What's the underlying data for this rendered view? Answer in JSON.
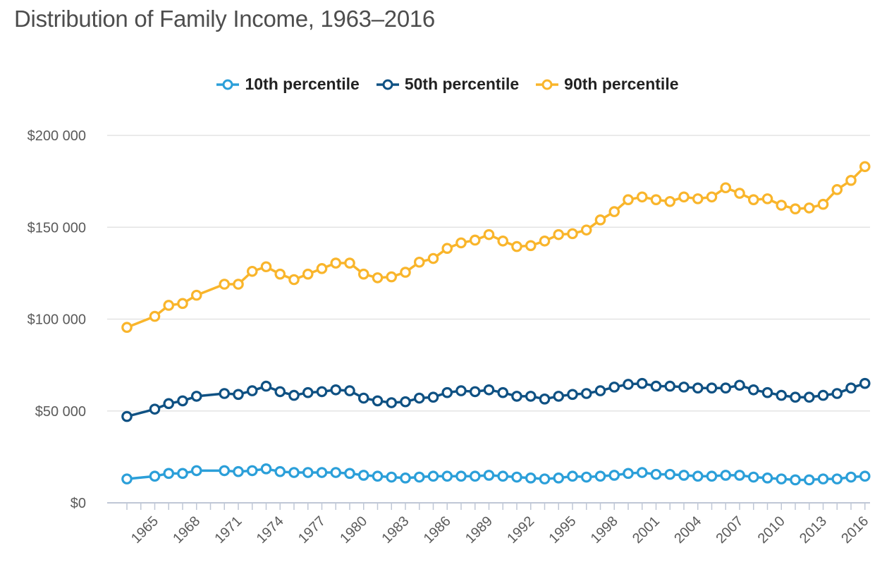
{
  "chart_data": {
    "type": "line",
    "title": "Distribution of Family Income, 1963–2016",
    "xlabel": "",
    "ylabel": "",
    "ylim": [
      0,
      200000
    ],
    "y_ticks": [
      0,
      50000,
      100000,
      150000,
      200000
    ],
    "y_tick_labels": [
      "$0",
      "$50 000",
      "$100 000",
      "$150 000",
      "$200 000"
    ],
    "x_tick_labels": [
      "1965",
      "1968",
      "1971",
      "1974",
      "1977",
      "1980",
      "1983",
      "1986",
      "1989",
      "1992",
      "1995",
      "1998",
      "2001",
      "2004",
      "2007",
      "2010",
      "2013",
      "2016"
    ],
    "grid": true,
    "legend_position": "top-center",
    "x": [
      1963,
      1965,
      1966,
      1967,
      1968,
      1970,
      1971,
      1972,
      1973,
      1974,
      1975,
      1976,
      1977,
      1978,
      1979,
      1980,
      1981,
      1982,
      1983,
      1984,
      1985,
      1986,
      1987,
      1988,
      1989,
      1990,
      1991,
      1992,
      1993,
      1994,
      1995,
      1996,
      1997,
      1998,
      1999,
      2000,
      2001,
      2002,
      2003,
      2004,
      2005,
      2006,
      2007,
      2008,
      2009,
      2010,
      2011,
      2012,
      2013,
      2014,
      2015,
      2016
    ],
    "series": [
      {
        "name": "10th percentile",
        "color": "#2b9fd9",
        "values": [
          13000,
          14500,
          16000,
          16000,
          17500,
          17500,
          17000,
          17500,
          18500,
          17000,
          16500,
          16500,
          16500,
          16500,
          16000,
          15000,
          14500,
          14000,
          13500,
          14000,
          14500,
          14500,
          14500,
          14500,
          15000,
          14500,
          14000,
          13500,
          13000,
          13500,
          14500,
          14000,
          14500,
          15000,
          16000,
          16500,
          15500,
          15500,
          15000,
          14500,
          14500,
          15000,
          15000,
          14000,
          13500,
          13000,
          12500,
          12500,
          13000,
          13000,
          14000,
          14500
        ]
      },
      {
        "name": "50th percentile",
        "color": "#0f5183",
        "values": [
          47000,
          51000,
          54000,
          55500,
          58000,
          59500,
          59000,
          61000,
          63500,
          60500,
          58500,
          60000,
          60500,
          61500,
          61000,
          57000,
          55500,
          54500,
          55000,
          57000,
          57500,
          60000,
          61000,
          60500,
          61500,
          60000,
          58000,
          58000,
          56500,
          58000,
          59000,
          59500,
          61000,
          63000,
          64500,
          65000,
          63500,
          63500,
          63000,
          62500,
          62500,
          62500,
          64000,
          61500,
          60000,
          58500,
          57500,
          57500,
          58500,
          59500,
          62500,
          65000
        ]
      },
      {
        "name": "90th percentile",
        "color": "#f9b52b",
        "values": [
          95500,
          101500,
          107500,
          108500,
          113000,
          119000,
          119000,
          126000,
          128500,
          124500,
          121500,
          124500,
          127500,
          130500,
          130500,
          124500,
          122500,
          123000,
          125500,
          131000,
          133000,
          138500,
          141500,
          143000,
          146000,
          142500,
          139500,
          140000,
          142500,
          146000,
          146500,
          148500,
          154000,
          158500,
          165000,
          166500,
          165000,
          164000,
          166500,
          165500,
          166500,
          171500,
          168500,
          165000,
          165500,
          162000,
          160000,
          160500,
          162500,
          170500,
          175500,
          183000
        ]
      }
    ]
  }
}
